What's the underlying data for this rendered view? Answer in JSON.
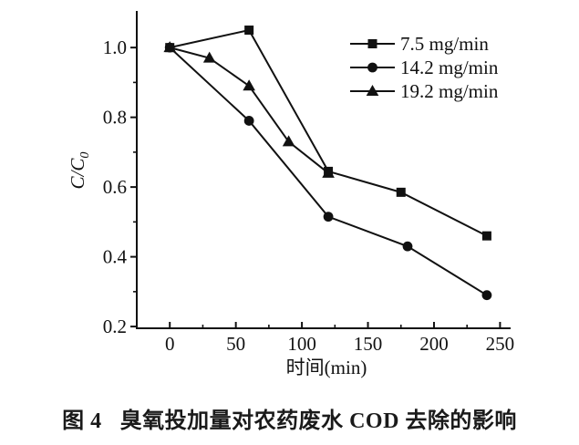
{
  "figure": {
    "caption": {
      "label": "图 4",
      "text": "臭氧投加量对农药废水 COD 去除的影响"
    }
  },
  "chart_data": {
    "type": "line",
    "title": "",
    "xlabel": "时间(min)",
    "ylabel": "C/C0",
    "ylabel_rich": {
      "base": "C/C",
      "subscript": "0"
    },
    "xlim": [
      -25,
      258
    ],
    "ylim": [
      0.195,
      1.105
    ],
    "x_major_ticks": [
      0,
      50,
      100,
      150,
      200,
      250
    ],
    "x_minor_ticks": [
      25,
      75,
      125,
      175,
      225
    ],
    "y_major_ticks": [
      0.2,
      0.4,
      0.6,
      0.8,
      1.0
    ],
    "y_minor_ticks": [
      0.3,
      0.5,
      0.7,
      0.9
    ],
    "grid": false,
    "legend_position": "inside-top-right",
    "ink_color": "#111111",
    "background_color": "#ffffff",
    "series": [
      {
        "name": "7.5 mg/min",
        "marker": "square",
        "x": [
          0,
          60,
          120,
          175,
          240
        ],
        "y": [
          1.0,
          1.05,
          0.645,
          0.585,
          0.46
        ]
      },
      {
        "name": "14.2 mg/min",
        "marker": "circle",
        "x": [
          0,
          60,
          120,
          180,
          240
        ],
        "y": [
          1.0,
          0.79,
          0.515,
          0.43,
          0.29
        ]
      },
      {
        "name": "19.2 mg/min",
        "marker": "triangle",
        "x": [
          0,
          30,
          60,
          90,
          120
        ],
        "y": [
          1.0,
          0.97,
          0.89,
          0.73,
          0.64
        ]
      }
    ]
  }
}
